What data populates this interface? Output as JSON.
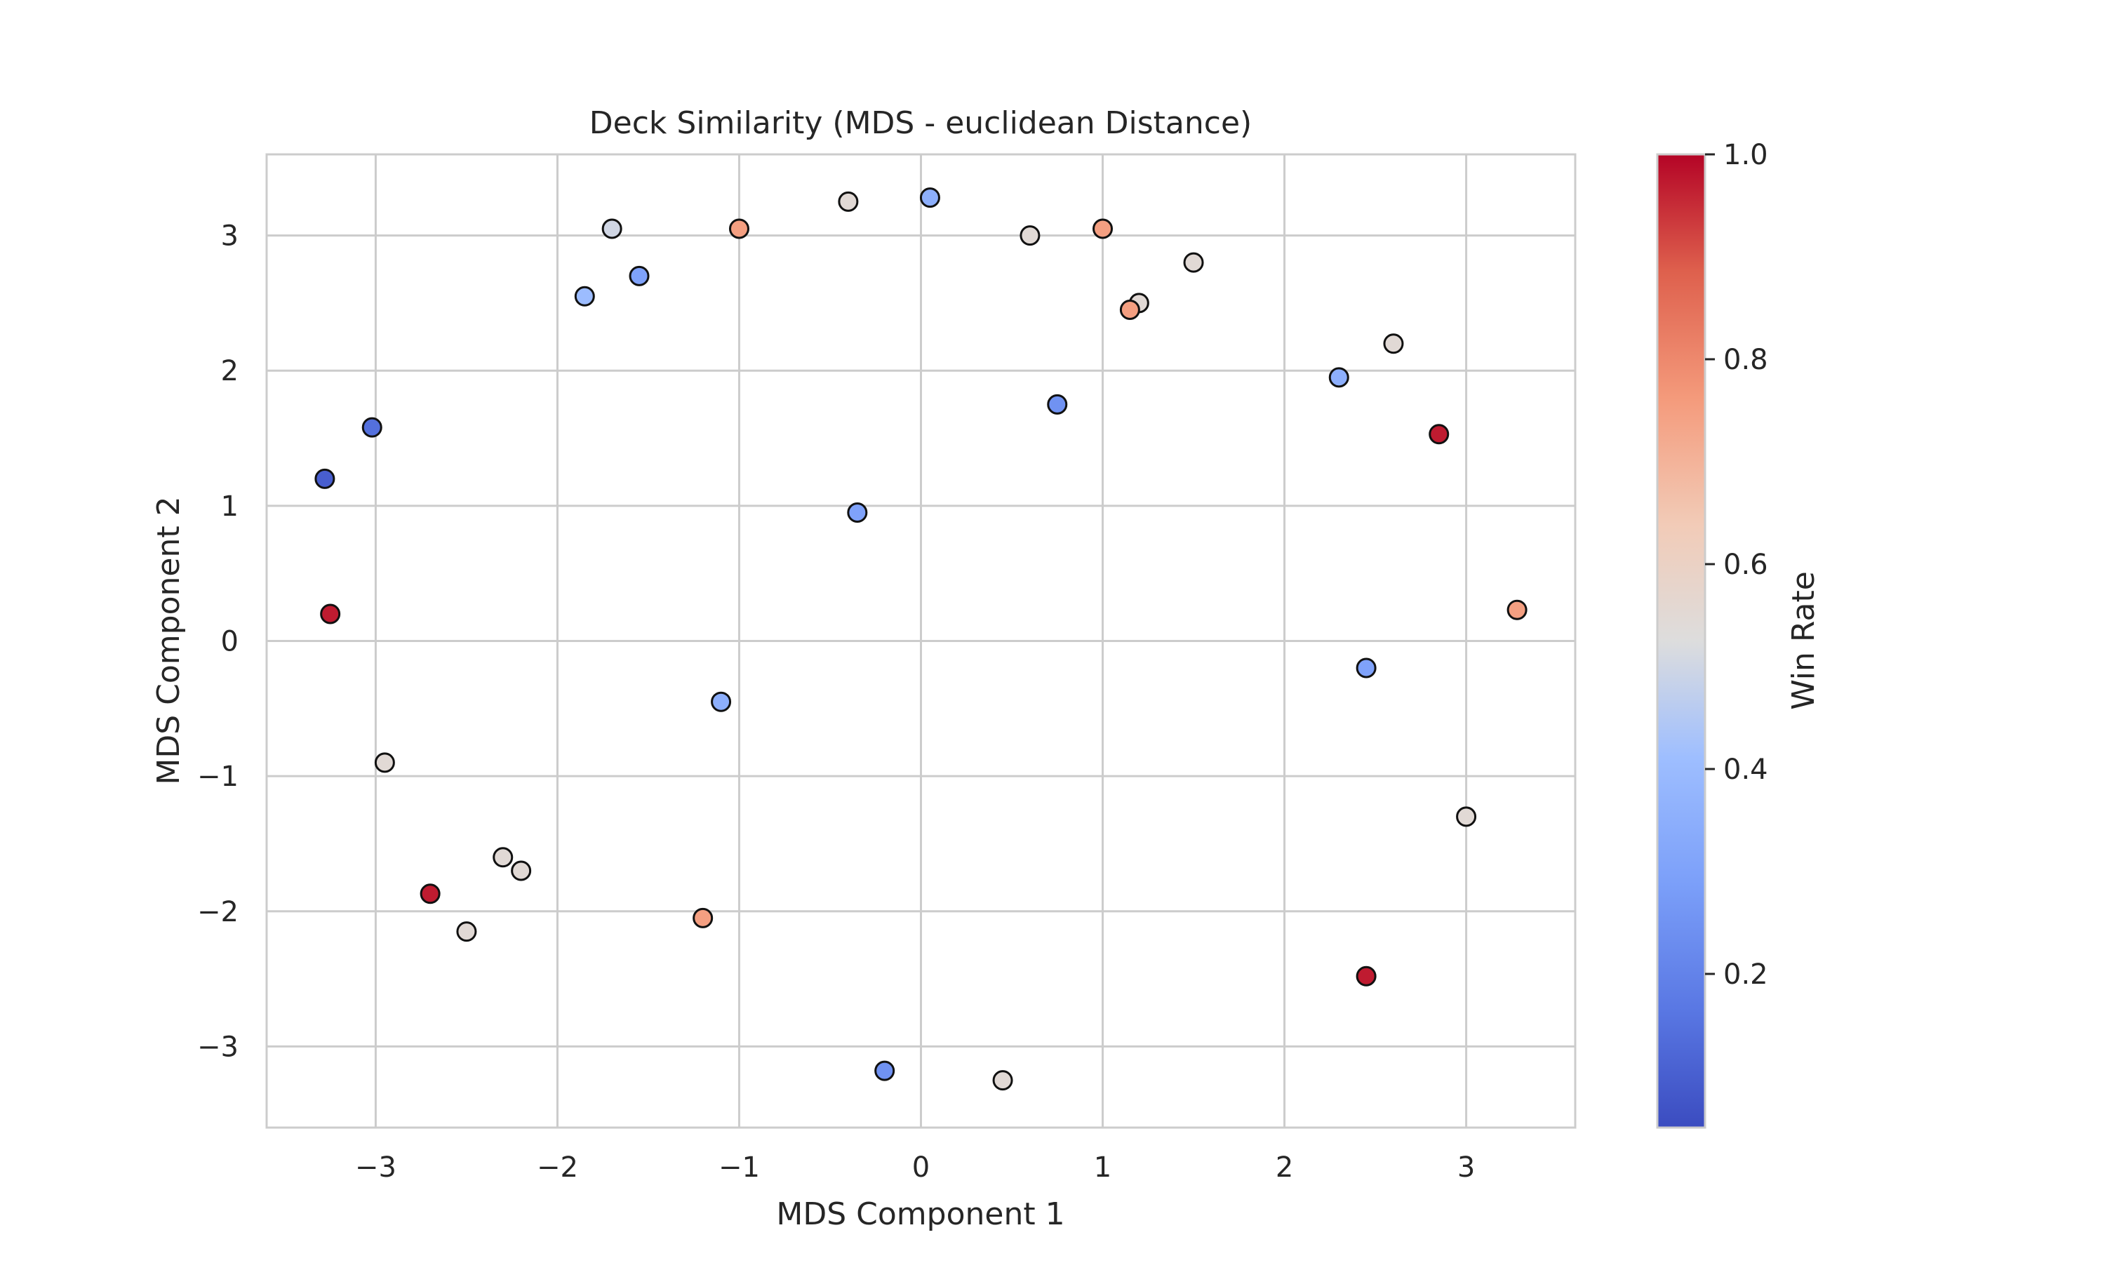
{
  "chart_data": {
    "type": "scatter",
    "title": "Deck Similarity (MDS - euclidean Distance)",
    "xlabel": "MDS Component 1",
    "ylabel": "MDS Component 2",
    "xlim": [
      -3.6,
      3.6
    ],
    "ylim": [
      -3.6,
      3.6
    ],
    "xticks": [
      {
        "value": -3,
        "label": "−3"
      },
      {
        "value": -2,
        "label": "−2"
      },
      {
        "value": -1,
        "label": "−1"
      },
      {
        "value": 0,
        "label": "0"
      },
      {
        "value": 1,
        "label": "1"
      },
      {
        "value": 2,
        "label": "2"
      },
      {
        "value": 3,
        "label": "3"
      }
    ],
    "yticks": [
      {
        "value": -3,
        "label": "−3"
      },
      {
        "value": -2,
        "label": "−2"
      },
      {
        "value": -1,
        "label": "−1"
      },
      {
        "value": 0,
        "label": "0"
      },
      {
        "value": 1,
        "label": "1"
      },
      {
        "value": 2,
        "label": "2"
      },
      {
        "value": 3,
        "label": "3"
      }
    ],
    "grid": true,
    "colormap": "coolwarm",
    "colorbar": {
      "label": "Win Rate",
      "range": [
        0.05,
        1.0
      ],
      "ticks": [
        {
          "value": 0.2,
          "label": "0.2"
        },
        {
          "value": 0.4,
          "label": "0.4"
        },
        {
          "value": 0.6,
          "label": "0.6"
        },
        {
          "value": 0.8,
          "label": "0.8"
        },
        {
          "value": 1.0,
          "label": "1.0"
        }
      ]
    },
    "colors": {
      "low": "#3b4cc0",
      "mid": "#dddddd",
      "high": "#b40426",
      "grid": "#cccccc",
      "marker_edge": "#111111"
    },
    "points": [
      {
        "x": -3.28,
        "y": 1.2,
        "v": 0.1
      },
      {
        "x": -3.02,
        "y": 1.58,
        "v": 0.15
      },
      {
        "x": -3.25,
        "y": 0.2,
        "v": 0.97
      },
      {
        "x": 3.28,
        "y": 0.23,
        "v": 0.75
      },
      {
        "x": 2.85,
        "y": 1.53,
        "v": 0.97
      },
      {
        "x": 0.05,
        "y": 3.28,
        "v": 0.35
      },
      {
        "x": 0.45,
        "y": -3.25,
        "v": 0.55
      },
      {
        "x": -2.7,
        "y": -1.87,
        "v": 0.97
      },
      {
        "x": 2.45,
        "y": -2.48,
        "v": 0.97
      },
      {
        "x": -0.2,
        "y": -3.18,
        "v": 0.25
      },
      {
        "x": -1.85,
        "y": 2.55,
        "v": 0.4
      },
      {
        "x": -1.55,
        "y": 2.7,
        "v": 0.3
      },
      {
        "x": 0.75,
        "y": 1.75,
        "v": 0.25
      },
      {
        "x": -0.35,
        "y": 0.95,
        "v": 0.3
      },
      {
        "x": -1.1,
        "y": -0.45,
        "v": 0.35
      },
      {
        "x": 2.3,
        "y": 1.95,
        "v": 0.35
      },
      {
        "x": 2.45,
        "y": -0.2,
        "v": 0.3
      },
      {
        "x": -1.7,
        "y": 3.05,
        "v": 0.5
      },
      {
        "x": 1.2,
        "y": 2.5,
        "v": 0.55
      },
      {
        "x": -0.4,
        "y": 3.25,
        "v": 0.55
      },
      {
        "x": 0.6,
        "y": 3.0,
        "v": 0.55
      },
      {
        "x": 1.5,
        "y": 2.8,
        "v": 0.55
      },
      {
        "x": -2.5,
        "y": -2.15,
        "v": 0.55
      },
      {
        "x": 2.6,
        "y": 2.2,
        "v": 0.55
      },
      {
        "x": 3.0,
        "y": -1.3,
        "v": 0.55
      },
      {
        "x": -2.95,
        "y": -0.9,
        "v": 0.55
      },
      {
        "x": -2.3,
        "y": -1.6,
        "v": 0.55
      },
      {
        "x": -2.2,
        "y": -1.7,
        "v": 0.55
      },
      {
        "x": 1.0,
        "y": 3.05,
        "v": 0.75
      },
      {
        "x": -1.0,
        "y": 3.05,
        "v": 0.75
      },
      {
        "x": 1.15,
        "y": 2.45,
        "v": 0.75
      },
      {
        "x": -1.2,
        "y": -2.05,
        "v": 0.75
      }
    ]
  }
}
